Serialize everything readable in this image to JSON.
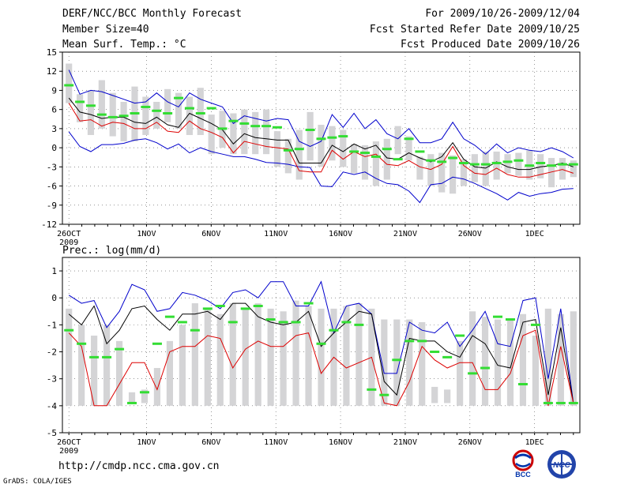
{
  "header": {
    "title": "DERF/NCC/BCC Monthly Forecast",
    "member_size": "Member Size=40",
    "variable": "Mean Surf. Temp.: °C",
    "forecast_period": "For 2009/10/26-2009/12/04",
    "start_date": "Fcst Started Refer Date 2009/10/25",
    "produced_date": "Fcst Produced Date 2009/10/26"
  },
  "footer": {
    "url": "http://cmdp.ncc.cma.gov.cn",
    "credit": "GrADS: COLA/IGES",
    "logo_left_text": "BCC",
    "logo_right_text": "NCC"
  },
  "colors": {
    "max": "#0000cc",
    "mean": "#000000",
    "min": "#dd0000",
    "box": "#d4d4d6",
    "green": "#33dd33",
    "grid": "#555555"
  },
  "chart_data": [
    {
      "type": "line",
      "title": "Mean Surf. Temp.: °C",
      "ylim": [
        -12,
        15
      ],
      "yticks": [
        15,
        12,
        9,
        6,
        3,
        0,
        -3,
        -6,
        -9,
        -12
      ],
      "x_labels": [
        "26OCT",
        "1NOV",
        "6NOV",
        "11NOV",
        "16NOV",
        "21NOV",
        "26NOV",
        "1DEC"
      ],
      "x_label_days": [
        0,
        6,
        11,
        16,
        21,
        26,
        31,
        36
      ],
      "x_sub_label": "2009",
      "days": 40,
      "series": [
        {
          "name": "max",
          "values": [
            2.5,
            0.2,
            -0.6,
            0.5,
            0.5,
            0.7,
            1.2,
            1.4,
            0.8,
            -0.2,
            0.6,
            -0.8,
            0.0,
            -0.6,
            -1.0,
            -1.4,
            -1.4,
            -1.8,
            -2.3,
            -2.4,
            -2.6,
            -3.0,
            -3.1,
            -6.0,
            -6.1,
            -3.8,
            -4.2,
            -3.8,
            -4.8,
            -5.6,
            -5.8,
            -6.8,
            -8.6,
            -5.8,
            -5.6,
            -4.6,
            -4.9,
            -5.6,
            -6.4,
            -7.2,
            -8.2,
            -7.0,
            -7.6,
            -7.2,
            -7.0,
            -6.5,
            -6.4
          ]
        },
        {
          "name": "top",
          "values": [
            12.2,
            8.4,
            9.0,
            8.8,
            8.2,
            7.6,
            7.0,
            7.2,
            8.6,
            7.2,
            6.4,
            8.6,
            7.6,
            7.0,
            6.4,
            3.8,
            5.0,
            4.6,
            4.2,
            4.6,
            4.4,
            1.0,
            0.2,
            1.0,
            5.2,
            3.2,
            5.4,
            3.0,
            4.4,
            2.2,
            1.4,
            3.0,
            0.8,
            0.8,
            1.4,
            4.0,
            1.4,
            0.4,
            -1.0,
            0.6,
            -0.8,
            0.0,
            -0.4,
            -0.6,
            0.0,
            -0.6,
            -1.6
          ]
        },
        {
          "name": "mean",
          "values": [
            7.8,
            5.6,
            5.2,
            4.6,
            4.8,
            4.8,
            4.0,
            3.8,
            4.8,
            3.6,
            3.2,
            5.4,
            4.6,
            3.8,
            2.8,
            0.6,
            2.2,
            1.6,
            1.4,
            1.2,
            1.2,
            -2.4,
            -2.4,
            -2.4,
            0.4,
            -0.6,
            0.6,
            -0.2,
            0.4,
            -1.6,
            -1.8,
            -0.8,
            -1.6,
            -2.2,
            -1.4,
            0.8,
            -1.8,
            -3.0,
            -3.2,
            -2.2,
            -3.0,
            -3.4,
            -3.4,
            -3.0,
            -2.8,
            -2.4,
            -3.0
          ]
        },
        {
          "name": "min",
          "values": [
            7.0,
            4.2,
            4.4,
            3.4,
            4.0,
            3.8,
            3.0,
            3.0,
            4.0,
            2.6,
            2.4,
            4.2,
            3.0,
            2.4,
            1.6,
            -0.8,
            1.0,
            0.6,
            0.2,
            0.0,
            -0.2,
            -3.6,
            -3.8,
            -3.8,
            -0.4,
            -1.8,
            -0.6,
            -1.4,
            -1.0,
            -2.6,
            -2.8,
            -2.0,
            -3.0,
            -3.4,
            -2.6,
            0.2,
            -2.8,
            -4.0,
            -4.2,
            -3.2,
            -4.2,
            -4.6,
            -4.6,
            -4.2,
            -3.8,
            -3.4,
            -4.0
          ]
        },
        {
          "name": "observed",
          "values": [
            9.8,
            7.2,
            6.6,
            5.2,
            4.8,
            5.0,
            5.4,
            6.4,
            5.8,
            5.4,
            7.8,
            6.2,
            5.4,
            6.2,
            3.0,
            4.2,
            3.8,
            3.4,
            3.4,
            3.2,
            -0.4,
            -0.2,
            2.8,
            1.4,
            1.6,
            1.8,
            -0.6,
            -0.8,
            -1.4,
            -0.2,
            -1.8,
            1.4,
            -0.6,
            -2.0,
            -2.2,
            -1.6,
            -2.4,
            -2.6,
            -2.6,
            -2.4,
            -2.2,
            -2.0,
            -2.8,
            -2.4,
            -2.8,
            -2.6,
            -2.6
          ]
        }
      ],
      "box_ranges": [
        [
          7.0,
          13.2
        ],
        [
          4.0,
          8.4
        ],
        [
          2.0,
          9.0
        ],
        [
          3.0,
          10.6
        ],
        [
          1.8,
          8.6
        ],
        [
          1.0,
          7.2
        ],
        [
          1.0,
          9.6
        ],
        [
          2.0,
          8.0
        ],
        [
          3.0,
          7.2
        ],
        [
          4.0,
          9.2
        ],
        [
          3.0,
          8.6
        ],
        [
          2.0,
          8.0
        ],
        [
          2.0,
          9.4
        ],
        [
          -1.0,
          5.2
        ],
        [
          0.0,
          5.8
        ],
        [
          -1.0,
          5.4
        ],
        [
          -1.0,
          6.0
        ],
        [
          -1.0,
          5.6
        ],
        [
          -1.0,
          6.0
        ],
        [
          -3.0,
          2.6
        ],
        [
          -4.0,
          1.4
        ],
        [
          -5.0,
          2.8
        ],
        [
          -2.0,
          5.6
        ],
        [
          -3.0,
          3.6
        ],
        [
          -2.0,
          3.4
        ],
        [
          -3.0,
          2.8
        ],
        [
          -4.0,
          0.6
        ],
        [
          -5.0,
          0.4
        ],
        [
          -6.0,
          1.0
        ],
        [
          -5.0,
          1.4
        ],
        [
          -1.0,
          3.4
        ],
        [
          -2.0,
          1.8
        ],
        [
          -5.0,
          -1.4
        ],
        [
          -6.0,
          -1.0
        ],
        [
          -7.0,
          -0.8
        ],
        [
          -7.2,
          -1.2
        ],
        [
          -6.0,
          -1.8
        ],
        [
          -5.4,
          -1.0
        ],
        [
          -6.0,
          -0.6
        ],
        [
          -5.0,
          -0.6
        ],
        [
          -4.0,
          -1.0
        ],
        [
          -4.4,
          -0.8
        ],
        [
          -5.0,
          -0.4
        ],
        [
          -4.8,
          -1.0
        ],
        [
          -6.2,
          -1.6
        ],
        [
          -5.0,
          -1.6
        ],
        [
          -4.6,
          -2.0
        ]
      ]
    },
    {
      "type": "line",
      "title": "Prec.: log(mm/d)",
      "ylim": [
        -5,
        1.5
      ],
      "yticks": [
        1,
        0,
        -1,
        -2,
        -3,
        -4,
        -5
      ],
      "x_labels": [
        "26OCT",
        "1NOV",
        "6NOV",
        "11NOV",
        "16NOV",
        "21NOV",
        "26NOV",
        "1DEC"
      ],
      "x_label_days": [
        0,
        6,
        11,
        16,
        21,
        26,
        31,
        36
      ],
      "x_sub_label": "2009",
      "days": 40,
      "series": [
        {
          "name": "max",
          "values": [
            0.1,
            -0.2,
            -0.1,
            -1.1,
            -0.5,
            0.5,
            0.3,
            -0.5,
            -0.4,
            0.2,
            0.1,
            -0.1,
            -0.4,
            0.2,
            0.3,
            0.0,
            0.6,
            0.6,
            -0.3,
            -0.3,
            0.6,
            -1.3,
            -0.3,
            -0.2,
            -0.6,
            -2.8,
            -2.8,
            -0.9,
            -1.2,
            -1.3,
            -0.9,
            -1.8,
            -1.2,
            -0.5,
            -1.7,
            -1.8,
            -0.1,
            0.0,
            -3.0,
            -0.4,
            -3.9
          ]
        },
        {
          "name": "mean",
          "values": [
            -0.6,
            -1.0,
            -0.3,
            -1.7,
            -1.2,
            -0.4,
            -0.3,
            -0.8,
            -1.2,
            -0.6,
            -0.6,
            -0.5,
            -0.8,
            -0.2,
            -0.2,
            -0.7,
            -0.9,
            -1.0,
            -0.9,
            -0.5,
            -1.8,
            -1.3,
            -0.9,
            -0.5,
            -0.6,
            -3.1,
            -3.6,
            -1.5,
            -1.6,
            -1.6,
            -2.0,
            -2.2,
            -1.4,
            -1.7,
            -2.5,
            -2.6,
            -0.9,
            -0.8,
            -3.6,
            -1.1,
            -3.9
          ]
        },
        {
          "name": "min",
          "values": [
            -1.3,
            -1.8,
            -4.0,
            -4.0,
            -3.2,
            -2.4,
            -2.4,
            -3.4,
            -2.0,
            -1.8,
            -1.8,
            -1.4,
            -1.5,
            -2.6,
            -1.9,
            -1.6,
            -1.8,
            -1.8,
            -1.4,
            -1.3,
            -2.8,
            -2.2,
            -2.6,
            -2.4,
            -2.2,
            -3.9,
            -4.0,
            -3.1,
            -1.8,
            -2.3,
            -2.6,
            -2.4,
            -2.4,
            -3.4,
            -3.4,
            -2.8,
            -1.4,
            -1.2,
            -4.0,
            -1.8,
            -3.9
          ]
        },
        {
          "name": "observed",
          "values": [
            -1.2,
            -1.7,
            -2.2,
            -2.2,
            -1.9,
            -3.9,
            -3.5,
            -1.7,
            -0.7,
            -0.9,
            -1.2,
            -0.4,
            -0.3,
            -0.9,
            -0.4,
            -0.3,
            -0.8,
            -0.9,
            -0.9,
            -0.2,
            -1.7,
            -1.2,
            -0.9,
            -1.0,
            -3.4,
            -3.6,
            -2.3,
            -1.6,
            -1.6,
            -2.0,
            -2.2,
            -1.4,
            -2.8,
            -2.6,
            -0.7,
            -0.8,
            -3.2,
            -1.0,
            -3.9,
            -3.9,
            -3.9
          ]
        }
      ],
      "box_ranges": [
        [
          -4.0,
          -0.4
        ],
        [
          -4.0,
          -1.0
        ],
        [
          -4.0,
          -1.4
        ],
        [
          -4.0,
          -1.0
        ],
        [
          -4.0,
          -1.6
        ],
        [
          -3.9,
          -3.5
        ],
        [
          -3.9,
          -3.4
        ],
        [
          -4.0,
          -2.6
        ],
        [
          -4.0,
          -1.6
        ],
        [
          -4.0,
          -1.0
        ],
        [
          -4.0,
          -0.2
        ],
        [
          -4.0,
          -0.4
        ],
        [
          -4.0,
          -0.6
        ],
        [
          -4.0,
          -0.2
        ],
        [
          -4.0,
          -0.4
        ],
        [
          -4.0,
          -0.2
        ],
        [
          -4.0,
          -0.4
        ],
        [
          -4.0,
          -0.5
        ],
        [
          -4.0,
          -0.1
        ],
        [
          -4.0,
          -0.3
        ],
        [
          -4.0,
          -0.4
        ],
        [
          -4.0,
          -0.4
        ],
        [
          -4.0,
          -0.3
        ],
        [
          -4.0,
          -0.2
        ],
        [
          -4.0,
          -0.4
        ],
        [
          -4.0,
          -0.8
        ],
        [
          -4.0,
          -0.8
        ],
        [
          -4.0,
          -0.8
        ],
        [
          -4.0,
          -0.9
        ],
        [
          -3.9,
          -3.3
        ],
        [
          -3.9,
          -3.4
        ],
        [
          -4.0,
          -1.6
        ],
        [
          -4.0,
          -0.5
        ],
        [
          -4.0,
          -0.7
        ],
        [
          -4.0,
          -0.8
        ],
        [
          -4.0,
          -0.8
        ],
        [
          -4.0,
          -0.6
        ],
        [
          -4.0,
          -1.4
        ],
        [
          -4.0,
          -0.4
        ],
        [
          -4.0,
          -0.6
        ],
        [
          -4.0,
          -0.5
        ]
      ]
    }
  ]
}
